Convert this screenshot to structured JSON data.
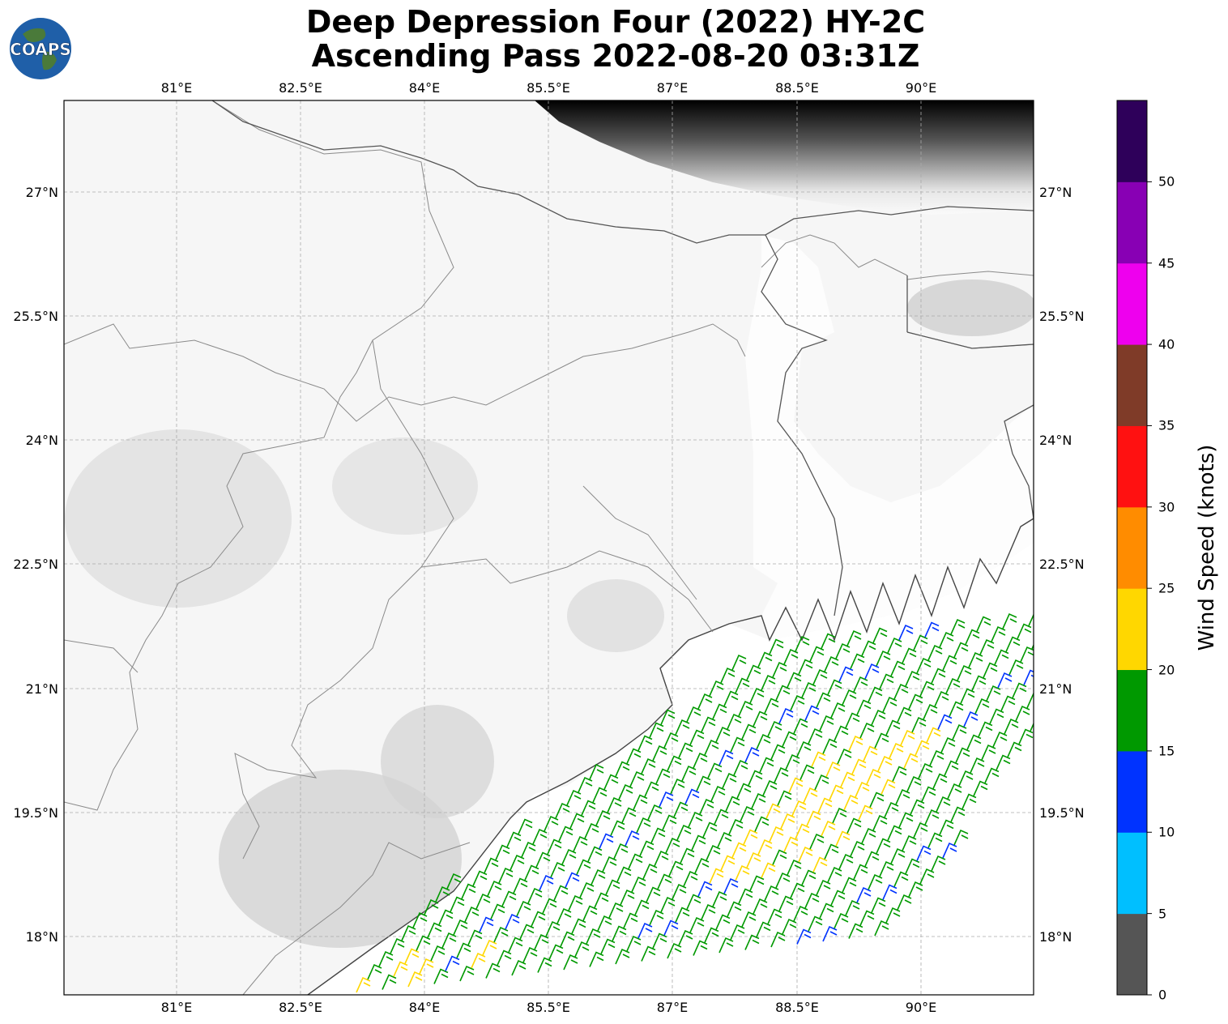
{
  "title": {
    "line1": "Deep Depression Four (2022) HY-2C",
    "line2": "Ascending Pass 2022-08-20 03:31Z"
  },
  "logo": {
    "text": "COAPS",
    "icon": "globe-logo-icon"
  },
  "map": {
    "lon_labels": [
      "81°E",
      "82.5°E",
      "84°E",
      "85.5°E",
      "87°E",
      "88.5°E",
      "90°E"
    ],
    "lat_labels": [
      "27°N",
      "25.5°N",
      "24°N",
      "22.5°N",
      "21°N",
      "19.5°N",
      "18°N"
    ],
    "projection": "PlateCarree",
    "extent_lon": [
      79.65,
      91.35
    ],
    "extent_lat": [
      17.3,
      28.1
    ],
    "gridlines": true,
    "features": [
      "coastline",
      "borders",
      "topography-grayscale"
    ]
  },
  "colorbar": {
    "label": "Wind Speed (knots)",
    "ticks": [
      "0",
      "5",
      "10",
      "15",
      "20",
      "25",
      "30",
      "35",
      "40",
      "45",
      "50"
    ],
    "colors": [
      "#555555",
      "#00bfff",
      "#0033ff",
      "#009900",
      "#ffd700",
      "#ff8c00",
      "#ff1111",
      "#7f3b28",
      "#ee00ee",
      "#8800b4",
      "#2e005a"
    ],
    "max": 55
  },
  "barbs": {
    "units": "knots",
    "dominant_direction": "southwest",
    "colors": {
      "blue": "#0033ff",
      "green": "#009900",
      "yellow": "#ffd700"
    }
  }
}
